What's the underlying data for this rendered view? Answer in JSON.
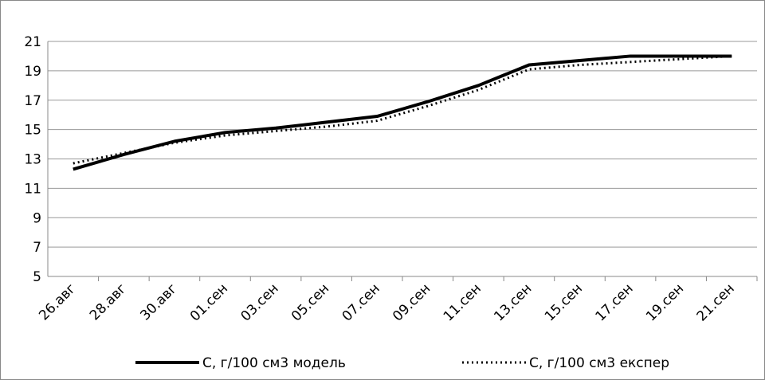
{
  "chart_data": {
    "type": "line",
    "categories": [
      "26.авг",
      "28.авг",
      "30.авг",
      "01.сен",
      "03.сен",
      "05.сен",
      "07.сен",
      "09.сен",
      "11.сен",
      "13.сен",
      "15.сен",
      "17.сен",
      "19.сен",
      "21.сен"
    ],
    "series": [
      {
        "name": "C, г/100 см3 модель",
        "color": "#000000",
        "dash": "solid",
        "values": [
          12.3,
          13.3,
          14.2,
          14.8,
          15.1,
          15.5,
          15.9,
          16.9,
          18.0,
          19.4,
          19.7,
          20.0,
          20.0,
          20.0
        ]
      },
      {
        "name": "C, г/100 см3 експер",
        "color": "#000000",
        "dash": "dotted",
        "values": [
          12.7,
          13.4,
          14.1,
          14.6,
          14.9,
          15.2,
          15.6,
          16.6,
          17.7,
          19.1,
          19.4,
          19.6,
          19.8,
          20.0
        ]
      }
    ],
    "ylim": [
      5,
      21
    ],
    "yticks": [
      5,
      7,
      9,
      11,
      13,
      15,
      17,
      19,
      21
    ],
    "grid": true,
    "legend": "bottom"
  }
}
